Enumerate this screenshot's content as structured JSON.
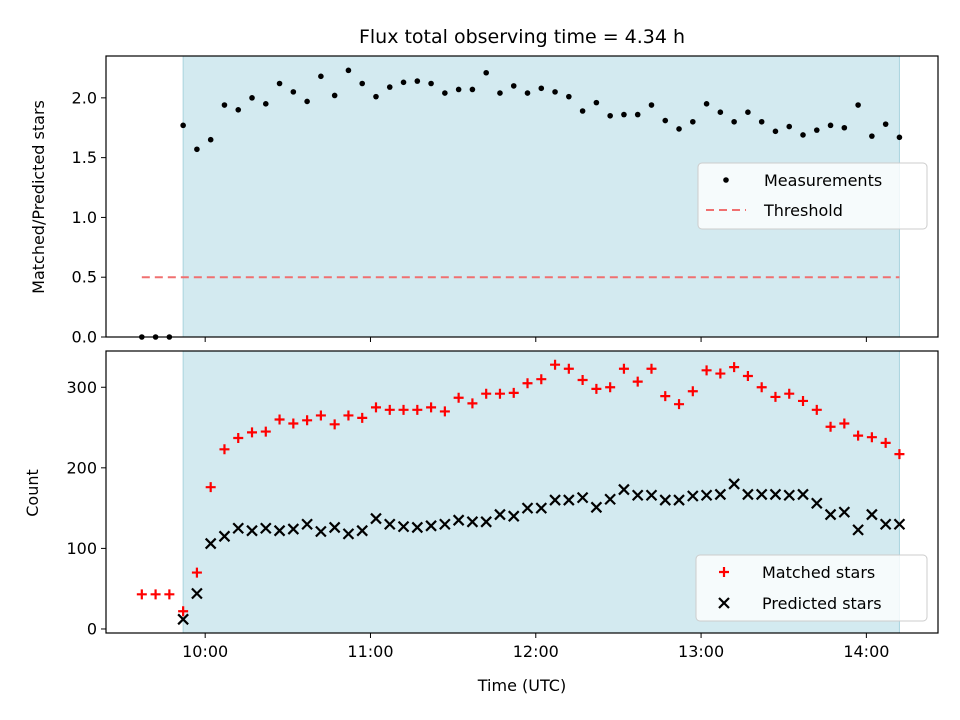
{
  "chart_data": [
    {
      "type": "scatter",
      "title": "Flux total observing time = 4.34 h",
      "xlabel": "",
      "ylabel": "Matched/Predicted stars",
      "xlim": [
        "09:24",
        "14:26"
      ],
      "ylim": [
        0,
        2.35
      ],
      "y_ticks": [
        0.0,
        0.5,
        1.0,
        1.5,
        2.0
      ],
      "y_tick_labels": [
        "0.0",
        "0.5",
        "1.0",
        "1.5",
        "2.0"
      ],
      "observing_window": {
        "start": "09:52",
        "end": "14:12",
        "color": "#d3eaf0"
      },
      "legend": {
        "placement": "center-right",
        "entries": [
          "Measurements",
          "Threshold"
        ]
      },
      "threshold": {
        "name": "Threshold",
        "value": 0.5,
        "x_range": [
          "09:37",
          "14:12"
        ],
        "color": "#f07070",
        "style": "dashed"
      },
      "series": [
        {
          "name": "Measurements",
          "color": "#000000",
          "marker": "dot",
          "x": [
            "09:37",
            "09:42",
            "09:47",
            "09:52",
            "09:57",
            "10:02",
            "10:07",
            "10:12",
            "10:17",
            "10:22",
            "10:27",
            "10:32",
            "10:37",
            "10:42",
            "10:47",
            "10:52",
            "10:57",
            "11:02",
            "11:07",
            "11:12",
            "11:17",
            "11:22",
            "11:27",
            "11:32",
            "11:37",
            "11:42",
            "11:47",
            "11:52",
            "11:57",
            "12:02",
            "12:07",
            "12:12",
            "12:17",
            "12:22",
            "12:27",
            "12:32",
            "12:37",
            "12:42",
            "12:47",
            "12:52",
            "12:57",
            "13:02",
            "13:07",
            "13:12",
            "13:17",
            "13:22",
            "13:27",
            "13:32",
            "13:37",
            "13:42",
            "13:47",
            "13:52",
            "13:57",
            "14:02",
            "14:07",
            "14:12"
          ],
          "y": [
            0.0,
            0.0,
            0.0,
            1.77,
            1.57,
            1.65,
            1.94,
            1.9,
            2.0,
            1.95,
            2.12,
            2.05,
            1.97,
            2.18,
            2.02,
            2.23,
            2.12,
            2.01,
            2.09,
            2.13,
            2.14,
            2.12,
            2.04,
            2.07,
            2.07,
            2.21,
            2.04,
            2.1,
            2.04,
            2.08,
            2.05,
            2.01,
            1.89,
            1.96,
            1.85,
            1.86,
            1.86,
            1.94,
            1.81,
            1.74,
            1.8,
            1.95,
            1.88,
            1.8,
            1.88,
            1.8,
            1.72,
            1.76,
            1.69,
            1.73,
            1.77,
            1.75,
            1.94,
            1.68,
            1.78,
            1.67
          ]
        }
      ]
    },
    {
      "type": "scatter",
      "title": "",
      "xlabel": "Time (UTC)",
      "ylabel": "Count",
      "xlim": [
        "09:24",
        "14:26"
      ],
      "ylim": [
        -5,
        345
      ],
      "x_ticks": [
        "10:00",
        "11:00",
        "12:00",
        "13:00",
        "14:00"
      ],
      "y_ticks": [
        0,
        100,
        200,
        300
      ],
      "y_tick_labels": [
        "0",
        "100",
        "200",
        "300"
      ],
      "observing_window": {
        "start": "09:52",
        "end": "14:12",
        "color": "#d3eaf0"
      },
      "legend": {
        "placement": "lower-right",
        "entries": [
          "Matched stars",
          "Predicted stars"
        ]
      },
      "series": [
        {
          "name": "Matched stars",
          "color": "#ff0000",
          "marker": "plus",
          "x": [
            "09:37",
            "09:42",
            "09:47",
            "09:52",
            "09:57",
            "10:02",
            "10:07",
            "10:12",
            "10:17",
            "10:22",
            "10:27",
            "10:32",
            "10:37",
            "10:42",
            "10:47",
            "10:52",
            "10:57",
            "11:02",
            "11:07",
            "11:12",
            "11:17",
            "11:22",
            "11:27",
            "11:32",
            "11:37",
            "11:42",
            "11:47",
            "11:52",
            "11:57",
            "12:02",
            "12:07",
            "12:12",
            "12:17",
            "12:22",
            "12:27",
            "12:32",
            "12:37",
            "12:42",
            "12:47",
            "12:52",
            "12:57",
            "13:02",
            "13:07",
            "13:12",
            "13:17",
            "13:22",
            "13:27",
            "13:32",
            "13:37",
            "13:42",
            "13:47",
            "13:52",
            "13:57",
            "14:02",
            "14:07",
            "14:12"
          ],
          "y": [
            43,
            43,
            43,
            22,
            70,
            176,
            223,
            237,
            244,
            245,
            260,
            255,
            259,
            265,
            254,
            265,
            262,
            275,
            272,
            272,
            272,
            275,
            270,
            287,
            280,
            292,
            292,
            293,
            305,
            310,
            328,
            323,
            309,
            298,
            300,
            323,
            307,
            323,
            289,
            279,
            295,
            321,
            317,
            325,
            314,
            300,
            288,
            292,
            283,
            272,
            251,
            255,
            240,
            238,
            231,
            217
          ]
        },
        {
          "name": "Predicted stars",
          "color": "#000000",
          "marker": "x",
          "x": [
            "09:52",
            "09:57",
            "10:02",
            "10:07",
            "10:12",
            "10:17",
            "10:22",
            "10:27",
            "10:32",
            "10:37",
            "10:42",
            "10:47",
            "10:52",
            "10:57",
            "11:02",
            "11:07",
            "11:12",
            "11:17",
            "11:22",
            "11:27",
            "11:32",
            "11:37",
            "11:42",
            "11:47",
            "11:52",
            "11:57",
            "12:02",
            "12:07",
            "12:12",
            "12:17",
            "12:22",
            "12:27",
            "12:32",
            "12:37",
            "12:42",
            "12:47",
            "12:52",
            "12:57",
            "13:02",
            "13:07",
            "13:12",
            "13:17",
            "13:22",
            "13:27",
            "13:32",
            "13:37",
            "13:42",
            "13:47",
            "13:52",
            "13:57",
            "14:02",
            "14:07",
            "14:12"
          ],
          "y": [
            12,
            44,
            106,
            115,
            125,
            122,
            125,
            122,
            124,
            130,
            121,
            126,
            118,
            122,
            137,
            130,
            127,
            126,
            128,
            130,
            135,
            133,
            133,
            142,
            140,
            150,
            150,
            160,
            160,
            163,
            151,
            161,
            173,
            166,
            166,
            160,
            160,
            165,
            166,
            167,
            180,
            167,
            167,
            167,
            166,
            167,
            156,
            142,
            145,
            123,
            142,
            130,
            130
          ]
        }
      ]
    }
  ]
}
